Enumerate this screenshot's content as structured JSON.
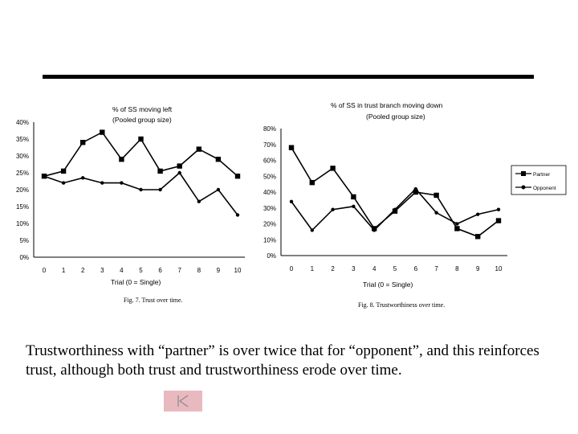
{
  "chart_data": [
    {
      "type": "line",
      "title": "% of SS moving left",
      "subtitle": "(Pooled group size)",
      "xlabel": "Trial (0 = Single)",
      "ylabel": "",
      "categories": [
        "0",
        "1",
        "2",
        "3",
        "4",
        "5",
        "6",
        "7",
        "8",
        "9",
        "10"
      ],
      "ylim": [
        0,
        40
      ],
      "yticks": [
        "0%",
        "5%",
        "10%",
        "15%",
        "20%",
        "25%",
        "30%",
        "35%",
        "40%"
      ],
      "series": [
        {
          "name": "squares",
          "marker": "square",
          "values": [
            24,
            25.5,
            34,
            37,
            29,
            35,
            25.5,
            27,
            32,
            29,
            24
          ]
        },
        {
          "name": "circles",
          "marker": "circle",
          "values": [
            24,
            22,
            23.5,
            22,
            22,
            20,
            20,
            25,
            16.5,
            20,
            12.5
          ]
        }
      ],
      "caption": "Fig. 7. Trust over time."
    },
    {
      "type": "line",
      "title": "% of SS in trust branch moving down",
      "subtitle": "(Pooled group size)",
      "xlabel": "Trial (0 = Single)",
      "ylabel": "",
      "categories": [
        "0",
        "1",
        "2",
        "3",
        "4",
        "5",
        "6",
        "7",
        "8",
        "9",
        "10"
      ],
      "ylim": [
        0,
        80
      ],
      "yticks": [
        "0%",
        "10%",
        "20%",
        "30%",
        "40%",
        "50%",
        "60%",
        "70%",
        "80%"
      ],
      "legend": "right",
      "series": [
        {
          "name": "Partner",
          "marker": "square",
          "values": [
            68,
            46,
            55,
            37,
            17,
            28,
            40,
            38,
            17,
            12,
            22
          ]
        },
        {
          "name": "Opponent",
          "marker": "circle",
          "values": [
            34,
            16,
            29,
            31,
            16,
            29,
            42,
            27,
            20,
            26,
            29
          ]
        }
      ],
      "caption": "Fig. 8. Trustworthiness over time."
    }
  ],
  "caption_text": "Trustworthiness with “partner” is over twice that for “opponent”, and this reinforces trust, although both trust and trustworthiness erode over time.",
  "nav_button": {
    "icon": "back-to-start-icon"
  }
}
